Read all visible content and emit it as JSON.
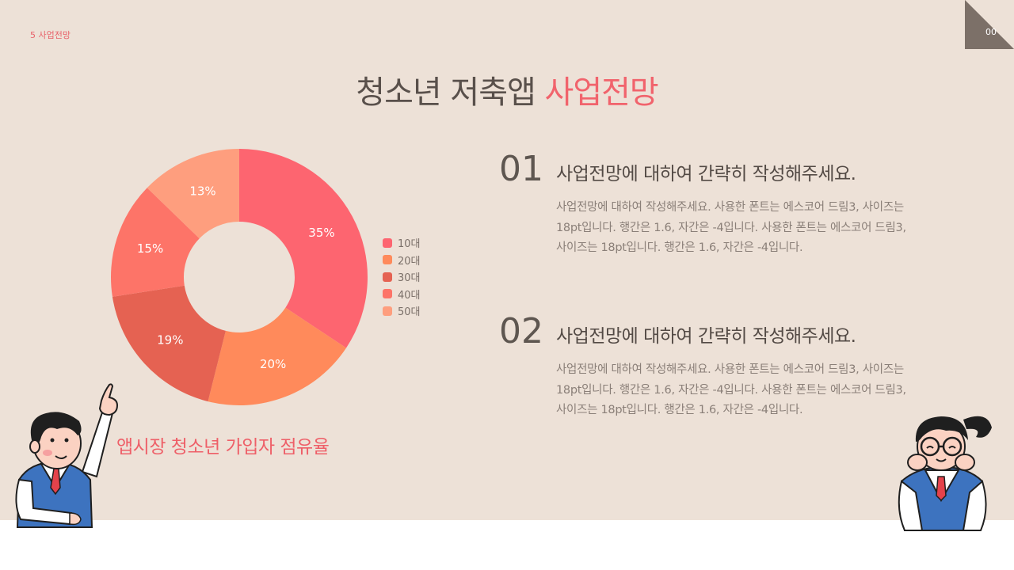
{
  "section_label": "5 사업전망",
  "page_number": "00",
  "title": {
    "main": "청소년 저축앱",
    "accent": "사업전망"
  },
  "chart_data": {
    "type": "pie",
    "donut": true,
    "labels": [
      "10대",
      "20대",
      "30대",
      "40대",
      "50대"
    ],
    "values": [
      35,
      20,
      19,
      15,
      13
    ],
    "data_labels": [
      "35%",
      "20%",
      "19%",
      "15%",
      "13%"
    ],
    "colors": [
      "#fd6570",
      "#ff8a5b",
      "#e56252",
      "#fd7468",
      "#fe9e7e"
    ],
    "legend": "right"
  },
  "chart_caption": "앱시장 청소년 가입자 점유율",
  "blocks": [
    {
      "number": "01",
      "heading": "사업전망에 대하여 간략히 작성해주세요.",
      "body": "사업전망에 대하여 작성해주세요. 사용한 폰트는 에스코어 드림3, 사이즈는 18pt입니다. 행간은 1.6, 자간은 -4입니다. 사용한 폰트는 에스코어 드림3, 사이즈는 18pt입니다. 행간은 1.6, 자간은 -4입니다."
    },
    {
      "number": "02",
      "heading": "사업전망에 대하여 간략히 작성해주세요.",
      "body": "사업전망에 대하여 작성해주세요. 사용한 폰트는 에스코어 드림3, 사이즈는 18pt입니다. 행간은 1.6, 자간은 -4입니다. 사용한 폰트는 에스코어 드림3, 사이즈는 18pt입니다. 행간은 1.6, 자간은 -4입니다."
    }
  ]
}
